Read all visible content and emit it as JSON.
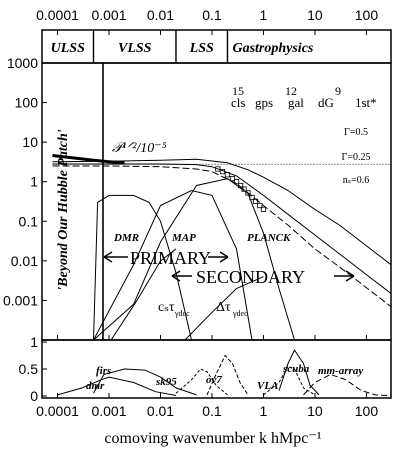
{
  "chart_data": [
    {
      "panel": "main",
      "type": "line",
      "xscale": "log",
      "yscale": "log",
      "xlim": [
        5e-05,
        300
      ],
      "ylim": [
        0.0001,
        1000
      ],
      "grid": false,
      "x_ticks": [
        "0.0001",
        "0.001",
        "0.01",
        "0.1",
        "1",
        "10",
        "100"
      ],
      "x_tick_values": [
        0.0001,
        0.001,
        0.01,
        0.1,
        1,
        10,
        100
      ],
      "y_ticks": [
        "1000",
        "100",
        "10",
        "1",
        "0.1",
        "0.01",
        "0.001"
      ],
      "y_tick_values": [
        1000,
        100,
        10,
        1,
        0.1,
        0.01,
        0.001
      ],
      "scale_regions": [
        {
          "label": "ULSS",
          "from": 5e-05,
          "to": 0.0005
        },
        {
          "label": "VLSS",
          "from": 0.0005,
          "to": 0.02
        },
        {
          "label": "LSS",
          "from": 0.02,
          "to": 0.2
        },
        {
          "label": "Gastrophysics",
          "from": 0.2,
          "to": 300
        }
      ],
      "mass_scales": {
        "exponents": [
          "15",
          "12",
          "9"
        ],
        "labels": [
          "cls",
          "gps",
          "gal",
          "dG",
          "1st*"
        ]
      },
      "annotations": {
        "hubble_patch": "'Beyond Our Hubble Patch'",
        "p_ratio": "𝒫¹ᐟ²/10⁻⁵",
        "primary": "PRIMARY",
        "secondary": "SECONDARY",
        "dmr": "DMR",
        "map": "MAP",
        "planck": "PLANCK",
        "ctau": "cₛτ",
        "ctau_sub": "γdec",
        "dtau": "Δτ",
        "dtau_sub": "γdec",
        "gamma_05": "Γ=0.5",
        "gamma_025": "Γ=0.25",
        "ns_06": "nₛ=0.6"
      },
      "series": [
        {
          "name": "Γ=0.5",
          "x": [
            8e-05,
            0.001,
            0.01,
            0.05,
            0.2,
            0.5,
            1,
            3,
            10,
            30,
            300
          ],
          "y": [
            3.2,
            3.3,
            3.5,
            3.7,
            3.0,
            2.0,
            1.3,
            0.6,
            0.2,
            0.08,
            0.008
          ]
        },
        {
          "name": "Γ=0.25",
          "x": [
            8e-05,
            0.001,
            0.01,
            0.05,
            0.1,
            0.3,
            1,
            3,
            10,
            30,
            300
          ],
          "y": [
            2.8,
            2.8,
            2.8,
            2.7,
            2.4,
            1.4,
            0.45,
            0.15,
            0.045,
            0.015,
            0.0015
          ]
        },
        {
          "name": "nₛ=0.6",
          "x": [
            8e-05,
            0.001,
            0.01,
            0.05,
            0.1,
            0.3,
            1,
            3,
            10,
            30,
            300
          ],
          "y": [
            2.5,
            2.5,
            2.4,
            2.1,
            1.8,
            0.9,
            0.25,
            0.08,
            0.02,
            0.007,
            0.0007
          ]
        },
        {
          "name": "P^(1/2) spectrum",
          "x": [
            8e-05,
            0.0002,
            0.0005,
            0.001,
            0.002
          ],
          "y": [
            4.6,
            4.0,
            3.5,
            3.2,
            3.0
          ]
        },
        {
          "name": "data points",
          "x": [
            0.13,
            0.16,
            0.2,
            0.25,
            0.3,
            0.36,
            0.42,
            0.5,
            0.6,
            0.7,
            0.85,
            1.0
          ],
          "y": [
            2.1,
            1.8,
            1.5,
            1.2,
            1.0,
            0.8,
            0.65,
            0.52,
            0.4,
            0.32,
            0.25,
            0.2
          ]
        },
        {
          "name": "DMR window",
          "x": [
            0.0005,
            0.0006,
            0.001,
            0.003,
            0.006,
            0.01,
            0.02,
            0.04
          ],
          "y": [
            0.0001,
            0.3,
            0.45,
            0.45,
            0.3,
            0.1,
            0.005,
            0.0001
          ]
        },
        {
          "name": "MAP window",
          "x": [
            0.0005,
            0.003,
            0.01,
            0.04,
            0.1,
            0.3,
            0.6
          ],
          "y": [
            0.0001,
            0.008,
            0.25,
            0.6,
            0.45,
            0.02,
            0.0001
          ]
        },
        {
          "name": "PLANCK window",
          "x": [
            0.0005,
            0.003,
            0.01,
            0.05,
            0.2,
            0.5,
            1,
            2,
            4
          ],
          "y": [
            0.0001,
            0.0008,
            0.03,
            0.8,
            1.2,
            0.5,
            0.05,
            0.002,
            0.0001
          ]
        },
        {
          "name": "c_s τ_γdec",
          "x": [
            0.0011,
            0.0035,
            0.01,
            0.02
          ],
          "y": [
            0.0001,
            0.001,
            0.01,
            0.02
          ]
        },
        {
          "name": "Δτ_γdec",
          "x": [
            0.03,
            0.1,
            0.3,
            1
          ],
          "y": [
            0.0001,
            0.0005,
            0.002,
            0.004
          ]
        }
      ]
    },
    {
      "panel": "bottom",
      "type": "line",
      "xscale": "log",
      "xlim": [
        5e-05,
        300
      ],
      "ylim": [
        0,
        1
      ],
      "x_ticks": [
        "0.0001",
        "0.001",
        "0.01",
        "0.1",
        "1",
        "10",
        "100"
      ],
      "x_tick_values": [
        0.0001,
        0.001,
        0.01,
        0.1,
        1,
        10,
        100
      ],
      "y_ticks": [
        "1",
        "0.5",
        "0"
      ],
      "y_tick_values": [
        1,
        0.5,
        0
      ],
      "xlabel": "comoving wavenumber k hMpc⁻¹",
      "series": [
        {
          "name": "firs",
          "x": [
            0.0005,
            0.0008,
            0.002,
            0.005,
            0.01,
            0.02,
            0.05
          ],
          "y": [
            0.05,
            0.4,
            0.5,
            0.48,
            0.35,
            0.15,
            0.02
          ]
        },
        {
          "name": "dmr",
          "x": [
            0.0001,
            0.0003,
            0.0007,
            0.001,
            0.003,
            0.008,
            0.02
          ],
          "y": [
            0.02,
            0.15,
            0.3,
            0.35,
            0.25,
            0.08,
            0.01
          ]
        },
        {
          "name": "sk95",
          "x": [
            0.02,
            0.04,
            0.06,
            0.08,
            0.12,
            0.2
          ],
          "y": [
            0.05,
            0.3,
            0.5,
            0.45,
            0.2,
            0.02
          ]
        },
        {
          "name": "ov7",
          "x": [
            0.08,
            0.12,
            0.18,
            0.25,
            0.35,
            0.5
          ],
          "y": [
            0.02,
            0.4,
            0.75,
            0.6,
            0.25,
            0.02
          ]
        },
        {
          "name": "VLA",
          "x": [
            1,
            2,
            3,
            4,
            6,
            10
          ],
          "y": [
            0.02,
            0.25,
            0.55,
            0.5,
            0.15,
            0.02
          ]
        },
        {
          "name": "scuba",
          "x": [
            2,
            3,
            4,
            6,
            8,
            12
          ],
          "y": [
            0.1,
            0.6,
            0.85,
            0.6,
            0.2,
            0.02
          ]
        },
        {
          "name": "mm-array",
          "x": [
            6,
            10,
            20,
            40,
            80,
            150,
            300
          ],
          "y": [
            0.02,
            0.25,
            0.4,
            0.3,
            0.1,
            0.02,
            0.005
          ]
        }
      ],
      "extra_labels": [
        "firs",
        "dmr",
        "sk95",
        "ov7",
        "VLA",
        "scuba",
        "mm-array"
      ]
    }
  ],
  "header": {
    "top_ticks": [
      "0.0001",
      "0.001",
      "0.01",
      "0.1",
      "1",
      "10",
      "100"
    ]
  }
}
